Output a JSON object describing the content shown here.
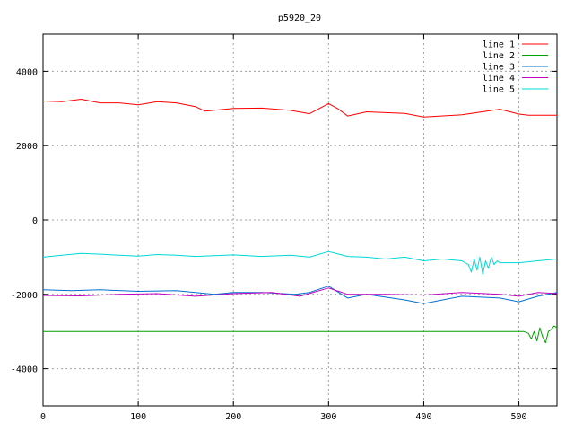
{
  "chart_data": {
    "type": "line",
    "title": "p5920_20",
    "xlabel": "",
    "ylabel": "",
    "xlim": [
      0,
      540
    ],
    "ylim": [
      -5000,
      5000
    ],
    "xticks": [
      0,
      100,
      200,
      300,
      400,
      500
    ],
    "yticks": [
      -4000,
      -2000,
      0,
      2000,
      4000
    ],
    "grid": true,
    "legend_position": "top-right",
    "series": [
      {
        "name": "line 1",
        "color": "#ff0000",
        "x": [
          0,
          20,
          40,
          60,
          80,
          100,
          120,
          140,
          160,
          170,
          200,
          230,
          260,
          280,
          300,
          310,
          320,
          340,
          380,
          400,
          440,
          480,
          500,
          510,
          540
        ],
        "y": [
          3200,
          3180,
          3250,
          3150,
          3150,
          3100,
          3180,
          3150,
          3050,
          2930,
          3000,
          3010,
          2950,
          2860,
          3130,
          2990,
          2800,
          2910,
          2870,
          2770,
          2830,
          2980,
          2850,
          2820,
          2820
        ]
      },
      {
        "name": "line 2",
        "color": "#00a000",
        "x": [
          0,
          100,
          200,
          300,
          400,
          500,
          505,
          510,
          513,
          516,
          519,
          522,
          525,
          528,
          531,
          534,
          537,
          540
        ],
        "y": [
          -3000,
          -3000,
          -3000,
          -3000,
          -3000,
          -3000,
          -3000,
          -3050,
          -3200,
          -3000,
          -3250,
          -2900,
          -3150,
          -3300,
          -3000,
          -2950,
          -2850,
          -2900
        ]
      },
      {
        "name": "line 3",
        "color": "#0070d0",
        "x": [
          0,
          30,
          60,
          100,
          140,
          180,
          200,
          230,
          265,
          280,
          300,
          320,
          340,
          380,
          400,
          440,
          480,
          500,
          520,
          540
        ],
        "y": [
          -1880,
          -1900,
          -1880,
          -1920,
          -1900,
          -2000,
          -1950,
          -1950,
          -2000,
          -1950,
          -1780,
          -2100,
          -2000,
          -2150,
          -2250,
          -2050,
          -2100,
          -2200,
          -2050,
          -1950
        ]
      },
      {
        "name": "line 4",
        "color": "#c000c0",
        "x": [
          0,
          40,
          80,
          120,
          160,
          200,
          240,
          270,
          300,
          320,
          360,
          400,
          440,
          480,
          500,
          520,
          540
        ],
        "y": [
          -2030,
          -2040,
          -2000,
          -1980,
          -2050,
          -1980,
          -1950,
          -2050,
          -1830,
          -2000,
          -2000,
          -2020,
          -1950,
          -2000,
          -2050,
          -1950,
          -1980
        ]
      },
      {
        "name": "line 5",
        "color": "#00d8d8",
        "x": [
          0,
          20,
          40,
          60,
          80,
          100,
          120,
          140,
          160,
          180,
          200,
          230,
          260,
          280,
          300,
          320,
          340,
          360,
          380,
          400,
          420,
          440,
          447,
          450,
          453,
          456,
          459,
          462,
          465,
          468,
          471,
          474,
          477,
          480,
          500,
          520,
          540
        ],
        "y": [
          -1000,
          -950,
          -900,
          -920,
          -950,
          -970,
          -930,
          -950,
          -980,
          -960,
          -940,
          -980,
          -950,
          -1000,
          -850,
          -980,
          -1000,
          -1050,
          -1000,
          -1100,
          -1050,
          -1100,
          -1200,
          -1400,
          -1050,
          -1350,
          -1000,
          -1450,
          -1100,
          -1300,
          -1000,
          -1200,
          -1100,
          -1150,
          -1150,
          -1100,
          -1050
        ]
      }
    ]
  }
}
